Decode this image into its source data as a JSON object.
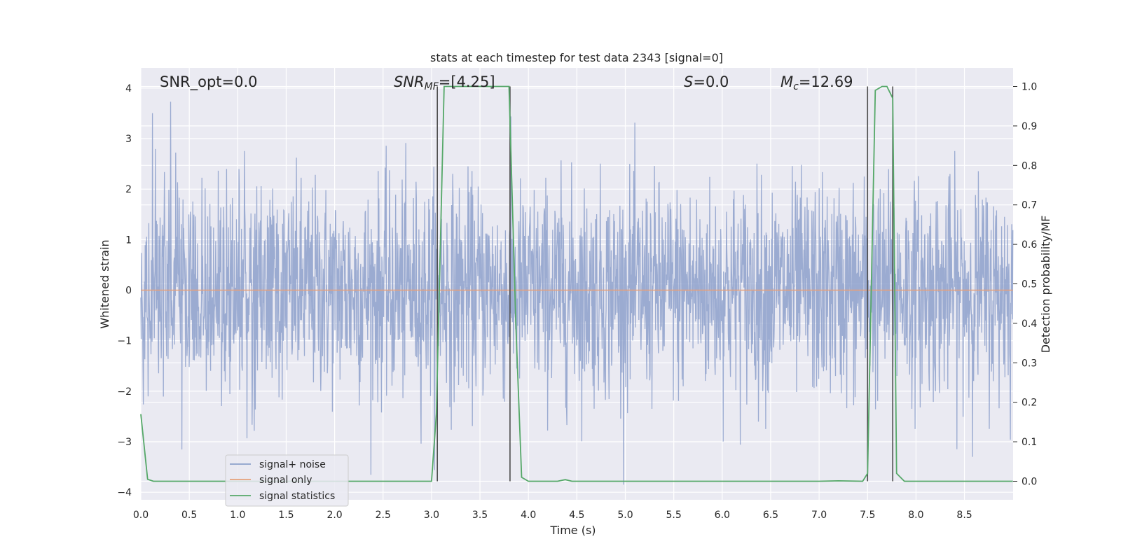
{
  "chart_data": {
    "type": "line",
    "title": "stats at each timestep for test data 2343 [signal=0]",
    "xlabel": "Time (s)",
    "ylabel": "Whitened strain",
    "ylabel_right": "Detection probability/MF",
    "xlim": [
      0.0,
      9.0
    ],
    "ylim": [
      -4.15,
      4.4
    ],
    "ylim_right": [
      -0.047,
      1.047
    ],
    "x_ticks": [
      "0.0",
      "0.5",
      "1.0",
      "1.5",
      "2.0",
      "2.5",
      "3.0",
      "3.5",
      "4.0",
      "4.5",
      "5.0",
      "5.5",
      "6.0",
      "6.5",
      "7.0",
      "7.5",
      "8.0",
      "8.5"
    ],
    "y_ticks": [
      "4",
      "3",
      "2",
      "1",
      "0",
      "−1",
      "−2",
      "−3",
      "−4"
    ],
    "y_right_ticks": [
      "1.0",
      "0.9",
      "0.8",
      "0.7",
      "0.6",
      "0.5",
      "0.4",
      "0.3",
      "0.2",
      "0.1",
      "0.0"
    ],
    "grid": true,
    "legend_position": "lower-left",
    "annotations": {
      "snr_opt": "SNR_opt=0.0",
      "snr_mf_main": "SNR",
      "snr_mf_sub": "MF",
      "snr_mf_value": "=[4.25]",
      "s_main": "S",
      "s_value": "=0.0",
      "mc_main": "M",
      "mc_sub": "c",
      "mc_value": "=12.69"
    },
    "series": [
      {
        "name": "signal+ noise",
        "color": "#8da0cb",
        "style": "noise",
        "description_level": "zero-mean noise, std≈1, peaks ≈ ±4"
      },
      {
        "name": "signal only",
        "color": "#e5a07a",
        "x": [
          0.0,
          9.0
        ],
        "y": [
          0.0,
          0.0
        ]
      },
      {
        "name": "signal statistics",
        "color": "#55a868",
        "axis": "right",
        "x": [
          0.0,
          0.07,
          0.13,
          0.5,
          1.0,
          1.5,
          2.0,
          2.5,
          3.0,
          3.05,
          3.13,
          3.2,
          3.5,
          3.8,
          3.82,
          3.87,
          3.93,
          4.0,
          4.3,
          4.38,
          4.45,
          5.0,
          6.0,
          7.0,
          7.2,
          7.45,
          7.5,
          7.58,
          7.65,
          7.7,
          7.76,
          7.8,
          7.88,
          8.0,
          8.5,
          9.0
        ],
        "y": [
          0.17,
          0.005,
          0.0,
          0.0,
          0.0,
          0.0,
          0.0,
          0.0,
          0.0,
          0.17,
          1.0,
          1.0,
          1.0,
          1.0,
          0.83,
          0.4,
          0.01,
          0.0,
          0.0,
          0.004,
          0.0,
          0.0,
          0.0,
          0.0,
          0.001,
          0.0,
          0.02,
          0.99,
          1.0,
          1.0,
          0.97,
          0.02,
          0.0,
          0.0,
          0.0,
          0.0
        ]
      }
    ],
    "vertical_lines": {
      "color": "#4d4d4d",
      "x": [
        3.06,
        3.81,
        7.5,
        7.76
      ]
    }
  }
}
